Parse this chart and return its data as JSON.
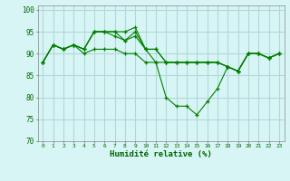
{
  "xlabel": "Humidité relative (%)",
  "background_color": "#d8f5f5",
  "grid_color": "#b0d8d8",
  "line_color": "#008000",
  "xlim": [
    -0.5,
    23.5
  ],
  "ylim": [
    70,
    101
  ],
  "yticks": [
    70,
    75,
    80,
    85,
    90,
    95,
    100
  ],
  "xtick_labels": [
    "0",
    "1",
    "2",
    "3",
    "4",
    "5",
    "6",
    "7",
    "8",
    "9",
    "10",
    "11",
    "12",
    "13",
    "14",
    "15",
    "16",
    "17",
    "18",
    "19",
    "20",
    "21",
    "22",
    "23"
  ],
  "series": [
    [
      88,
      92,
      91,
      92,
      91,
      95,
      95,
      95,
      95,
      96,
      91,
      88,
      88,
      88,
      88,
      88,
      88,
      88,
      87,
      86,
      90,
      90,
      89,
      90
    ],
    [
      88,
      92,
      91,
      92,
      91,
      95,
      95,
      95,
      93,
      95,
      91,
      91,
      88,
      88,
      88,
      88,
      88,
      88,
      87,
      86,
      90,
      90,
      89,
      90
    ],
    [
      88,
      92,
      91,
      92,
      91,
      95,
      95,
      94,
      93,
      94,
      91,
      91,
      88,
      88,
      88,
      88,
      88,
      88,
      87,
      86,
      90,
      90,
      89,
      90
    ],
    [
      88,
      92,
      91,
      92,
      90,
      91,
      91,
      91,
      90,
      90,
      88,
      88,
      80,
      78,
      78,
      76,
      79,
      82,
      87,
      86,
      90,
      90,
      89,
      90
    ]
  ]
}
